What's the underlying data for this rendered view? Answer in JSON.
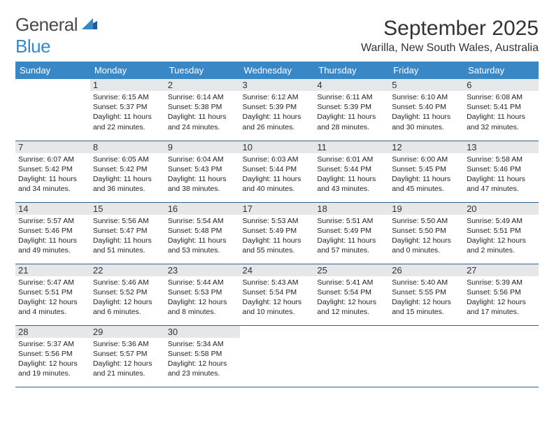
{
  "logo": {
    "word1": "General",
    "word2": "Blue"
  },
  "title": "September 2025",
  "location": "Warilla, New South Wales, Australia",
  "colors": {
    "header_bg": "#3a87c6",
    "header_fg": "#ffffff",
    "row_border": "#2d5f8f",
    "daynum_bg": "#e6e7e8",
    "text": "#333333",
    "logo_gray": "#4a4a4a",
    "logo_blue": "#3a87c6"
  },
  "weekdays": [
    "Sunday",
    "Monday",
    "Tuesday",
    "Wednesday",
    "Thursday",
    "Friday",
    "Saturday"
  ],
  "weeks": [
    [
      null,
      {
        "n": "1",
        "sr": "6:15 AM",
        "ss": "5:37 PM",
        "dl": "11 hours and 22 minutes."
      },
      {
        "n": "2",
        "sr": "6:14 AM",
        "ss": "5:38 PM",
        "dl": "11 hours and 24 minutes."
      },
      {
        "n": "3",
        "sr": "6:12 AM",
        "ss": "5:39 PM",
        "dl": "11 hours and 26 minutes."
      },
      {
        "n": "4",
        "sr": "6:11 AM",
        "ss": "5:39 PM",
        "dl": "11 hours and 28 minutes."
      },
      {
        "n": "5",
        "sr": "6:10 AM",
        "ss": "5:40 PM",
        "dl": "11 hours and 30 minutes."
      },
      {
        "n": "6",
        "sr": "6:08 AM",
        "ss": "5:41 PM",
        "dl": "11 hours and 32 minutes."
      }
    ],
    [
      {
        "n": "7",
        "sr": "6:07 AM",
        "ss": "5:42 PM",
        "dl": "11 hours and 34 minutes."
      },
      {
        "n": "8",
        "sr": "6:05 AM",
        "ss": "5:42 PM",
        "dl": "11 hours and 36 minutes."
      },
      {
        "n": "9",
        "sr": "6:04 AM",
        "ss": "5:43 PM",
        "dl": "11 hours and 38 minutes."
      },
      {
        "n": "10",
        "sr": "6:03 AM",
        "ss": "5:44 PM",
        "dl": "11 hours and 40 minutes."
      },
      {
        "n": "11",
        "sr": "6:01 AM",
        "ss": "5:44 PM",
        "dl": "11 hours and 43 minutes."
      },
      {
        "n": "12",
        "sr": "6:00 AM",
        "ss": "5:45 PM",
        "dl": "11 hours and 45 minutes."
      },
      {
        "n": "13",
        "sr": "5:58 AM",
        "ss": "5:46 PM",
        "dl": "11 hours and 47 minutes."
      }
    ],
    [
      {
        "n": "14",
        "sr": "5:57 AM",
        "ss": "5:46 PM",
        "dl": "11 hours and 49 minutes."
      },
      {
        "n": "15",
        "sr": "5:56 AM",
        "ss": "5:47 PM",
        "dl": "11 hours and 51 minutes."
      },
      {
        "n": "16",
        "sr": "5:54 AM",
        "ss": "5:48 PM",
        "dl": "11 hours and 53 minutes."
      },
      {
        "n": "17",
        "sr": "5:53 AM",
        "ss": "5:49 PM",
        "dl": "11 hours and 55 minutes."
      },
      {
        "n": "18",
        "sr": "5:51 AM",
        "ss": "5:49 PM",
        "dl": "11 hours and 57 minutes."
      },
      {
        "n": "19",
        "sr": "5:50 AM",
        "ss": "5:50 PM",
        "dl": "12 hours and 0 minutes."
      },
      {
        "n": "20",
        "sr": "5:49 AM",
        "ss": "5:51 PM",
        "dl": "12 hours and 2 minutes."
      }
    ],
    [
      {
        "n": "21",
        "sr": "5:47 AM",
        "ss": "5:51 PM",
        "dl": "12 hours and 4 minutes."
      },
      {
        "n": "22",
        "sr": "5:46 AM",
        "ss": "5:52 PM",
        "dl": "12 hours and 6 minutes."
      },
      {
        "n": "23",
        "sr": "5:44 AM",
        "ss": "5:53 PM",
        "dl": "12 hours and 8 minutes."
      },
      {
        "n": "24",
        "sr": "5:43 AM",
        "ss": "5:54 PM",
        "dl": "12 hours and 10 minutes."
      },
      {
        "n": "25",
        "sr": "5:41 AM",
        "ss": "5:54 PM",
        "dl": "12 hours and 12 minutes."
      },
      {
        "n": "26",
        "sr": "5:40 AM",
        "ss": "5:55 PM",
        "dl": "12 hours and 15 minutes."
      },
      {
        "n": "27",
        "sr": "5:39 AM",
        "ss": "5:56 PM",
        "dl": "12 hours and 17 minutes."
      }
    ],
    [
      {
        "n": "28",
        "sr": "5:37 AM",
        "ss": "5:56 PM",
        "dl": "12 hours and 19 minutes."
      },
      {
        "n": "29",
        "sr": "5:36 AM",
        "ss": "5:57 PM",
        "dl": "12 hours and 21 minutes."
      },
      {
        "n": "30",
        "sr": "5:34 AM",
        "ss": "5:58 PM",
        "dl": "12 hours and 23 minutes."
      },
      null,
      null,
      null,
      null
    ]
  ]
}
